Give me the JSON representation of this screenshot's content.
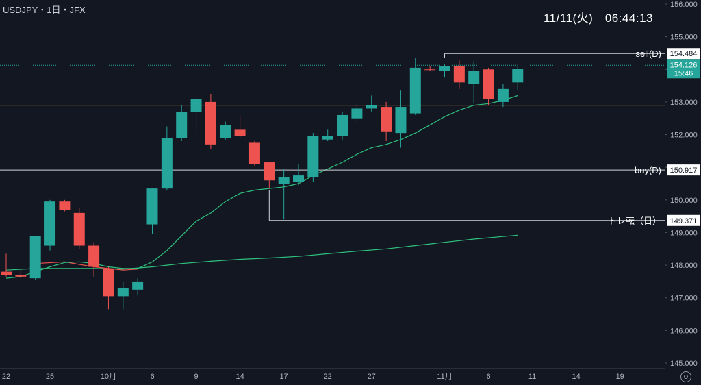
{
  "header": {
    "symbol": "USDJPY・1日・JFX",
    "clock": "11/11(火)　06:44:13"
  },
  "colors": {
    "background": "#131722",
    "up": "#26a69a",
    "down": "#ef5350",
    "ma_fast": "#2ec27e",
    "ma_slow": "#2ec27e",
    "ma_early": "#ef5350",
    "orange_line": "#f0a030",
    "line_white": "#d1d4dc",
    "text": "#d1d4dc"
  },
  "icons": {
    "settings": "settings-gear-icon"
  },
  "chart_data": {
    "type": "candlestick",
    "ylim": [
      144.8,
      156.2
    ],
    "y_ticks": [
      "156.000",
      "155.000",
      "154.000",
      "153.000",
      "152.000",
      "151.000",
      "150.000",
      "149.000",
      "148.000",
      "147.000",
      "146.000",
      "145.000"
    ],
    "x_tick_labels": [
      "22",
      "25",
      "10月",
      "6",
      "9",
      "14",
      "17",
      "22",
      "27",
      "11月",
      "6",
      "11",
      "14",
      "19"
    ],
    "x_tick_slots": [
      0,
      3,
      7,
      10,
      13,
      16,
      19,
      22,
      25,
      30,
      33,
      36,
      39,
      42
    ],
    "candles": [
      {
        "o": 147.8,
        "h": 148.35,
        "l": 147.65,
        "c": 147.7
      },
      {
        "o": 147.7,
        "h": 147.85,
        "l": 147.6,
        "c": 147.65
      },
      {
        "o": 147.6,
        "h": 148.9,
        "l": 147.55,
        "c": 148.9
      },
      {
        "o": 148.6,
        "h": 150.0,
        "l": 148.45,
        "c": 149.95
      },
      {
        "o": 149.95,
        "h": 150.0,
        "l": 149.65,
        "c": 149.7
      },
      {
        "o": 149.6,
        "h": 149.75,
        "l": 148.5,
        "c": 148.6
      },
      {
        "o": 148.6,
        "h": 148.7,
        "l": 147.65,
        "c": 147.95
      },
      {
        "o": 147.9,
        "h": 147.95,
        "l": 146.65,
        "c": 147.05
      },
      {
        "o": 147.05,
        "h": 147.5,
        "l": 146.65,
        "c": 147.3
      },
      {
        "o": 147.25,
        "h": 147.6,
        "l": 147.1,
        "c": 147.5
      },
      {
        "o": 149.25,
        "h": 150.35,
        "l": 148.95,
        "c": 150.35
      },
      {
        "o": 150.35,
        "h": 152.25,
        "l": 150.3,
        "c": 151.9
      },
      {
        "o": 151.9,
        "h": 152.9,
        "l": 151.8,
        "c": 152.7
      },
      {
        "o": 152.7,
        "h": 153.2,
        "l": 152.1,
        "c": 153.1
      },
      {
        "o": 153.0,
        "h": 153.25,
        "l": 151.55,
        "c": 151.7
      },
      {
        "o": 151.9,
        "h": 152.4,
        "l": 151.85,
        "c": 152.3
      },
      {
        "o": 152.15,
        "h": 152.6,
        "l": 151.9,
        "c": 151.95
      },
      {
        "o": 151.75,
        "h": 151.8,
        "l": 151.05,
        "c": 151.1
      },
      {
        "o": 151.15,
        "h": 151.15,
        "l": 150.35,
        "c": 150.6
      },
      {
        "o": 150.5,
        "h": 150.95,
        "l": 149.4,
        "c": 150.7
      },
      {
        "o": 150.55,
        "h": 151.1,
        "l": 150.45,
        "c": 150.75
      },
      {
        "o": 150.7,
        "h": 152.05,
        "l": 150.55,
        "c": 151.95
      },
      {
        "o": 151.85,
        "h": 152.15,
        "l": 151.8,
        "c": 151.95
      },
      {
        "o": 151.95,
        "h": 152.7,
        "l": 151.85,
        "c": 152.6
      },
      {
        "o": 152.5,
        "h": 152.95,
        "l": 152.4,
        "c": 152.8
      },
      {
        "o": 152.8,
        "h": 153.2,
        "l": 152.7,
        "c": 152.9
      },
      {
        "o": 152.85,
        "h": 153.0,
        "l": 151.8,
        "c": 152.1
      },
      {
        "o": 152.05,
        "h": 153.35,
        "l": 151.6,
        "c": 152.85
      },
      {
        "o": 152.65,
        "h": 154.35,
        "l": 152.6,
        "c": 154.05
      },
      {
        "o": 154.0,
        "h": 154.1,
        "l": 153.95,
        "c": 153.98
      },
      {
        "o": 153.95,
        "h": 154.15,
        "l": 153.75,
        "c": 154.1
      },
      {
        "o": 154.1,
        "h": 154.3,
        "l": 153.4,
        "c": 153.6
      },
      {
        "o": 153.55,
        "h": 154.25,
        "l": 152.95,
        "c": 153.95
      },
      {
        "o": 154.0,
        "h": 154.05,
        "l": 152.9,
        "c": 153.1
      },
      {
        "o": 153.0,
        "h": 153.55,
        "l": 152.85,
        "c": 153.4
      },
      {
        "o": 153.6,
        "h": 154.15,
        "l": 153.35,
        "c": 154.02
      }
    ],
    "ma_fast": [
      [
        0,
        147.6
      ],
      [
        1,
        147.65
      ],
      [
        2,
        147.8
      ],
      [
        3,
        147.95
      ],
      [
        4,
        148.08
      ],
      [
        5,
        148.1
      ],
      [
        6,
        148.05
      ],
      [
        7,
        147.95
      ],
      [
        8,
        147.9
      ],
      [
        9,
        147.9
      ],
      [
        10,
        148.1
      ],
      [
        11,
        148.45
      ],
      [
        12,
        148.9
      ],
      [
        13,
        149.35
      ],
      [
        14,
        149.6
      ],
      [
        15,
        149.95
      ],
      [
        16,
        150.2
      ],
      [
        17,
        150.3
      ],
      [
        18,
        150.35
      ],
      [
        19,
        150.4
      ],
      [
        20,
        150.5
      ],
      [
        21,
        150.75
      ],
      [
        22,
        150.95
      ],
      [
        23,
        151.15
      ],
      [
        24,
        151.4
      ],
      [
        25,
        151.6
      ],
      [
        26,
        151.7
      ],
      [
        27,
        151.85
      ],
      [
        28,
        152.05
      ],
      [
        29,
        152.3
      ],
      [
        30,
        152.55
      ],
      [
        31,
        152.75
      ],
      [
        32,
        152.9
      ],
      [
        33,
        152.95
      ],
      [
        34,
        153.05
      ],
      [
        35,
        153.2
      ]
    ],
    "ma_slow": [
      [
        0,
        147.85
      ],
      [
        2,
        147.9
      ],
      [
        4,
        147.9
      ],
      [
        6,
        147.9
      ],
      [
        8,
        147.88
      ],
      [
        10,
        147.95
      ],
      [
        12,
        148.05
      ],
      [
        14,
        148.12
      ],
      [
        16,
        148.18
      ],
      [
        18,
        148.22
      ],
      [
        20,
        148.27
      ],
      [
        22,
        148.35
      ],
      [
        24,
        148.43
      ],
      [
        26,
        148.5
      ],
      [
        28,
        148.6
      ],
      [
        30,
        148.7
      ],
      [
        32,
        148.8
      ],
      [
        34,
        148.88
      ],
      [
        35,
        148.92
      ]
    ],
    "ma_early": [
      [
        2,
        148.05
      ],
      [
        4,
        148.1
      ],
      [
        6,
        147.95
      ],
      [
        8,
        147.85
      ],
      [
        9,
        147.88
      ]
    ],
    "hlines": [
      {
        "name": "sell(D)",
        "value": 154.484,
        "label": "154.484",
        "color": "#d1d4dc",
        "start_slot": 30,
        "anchor_value": 154.35
      },
      {
        "name": "buy(D)",
        "value": 150.917,
        "label": "150.917",
        "color": "#d1d4dc",
        "start_slot": -2
      },
      {
        "name": "トレ転（日）",
        "value": 149.371,
        "label": "149.371",
        "color": "#d1d4dc",
        "start_slot": 18,
        "anchor_value": 150.3
      }
    ],
    "orange_line": {
      "value": 152.9
    },
    "current": {
      "value": 154.126,
      "label": "154.126",
      "countdown": "15:46"
    }
  }
}
